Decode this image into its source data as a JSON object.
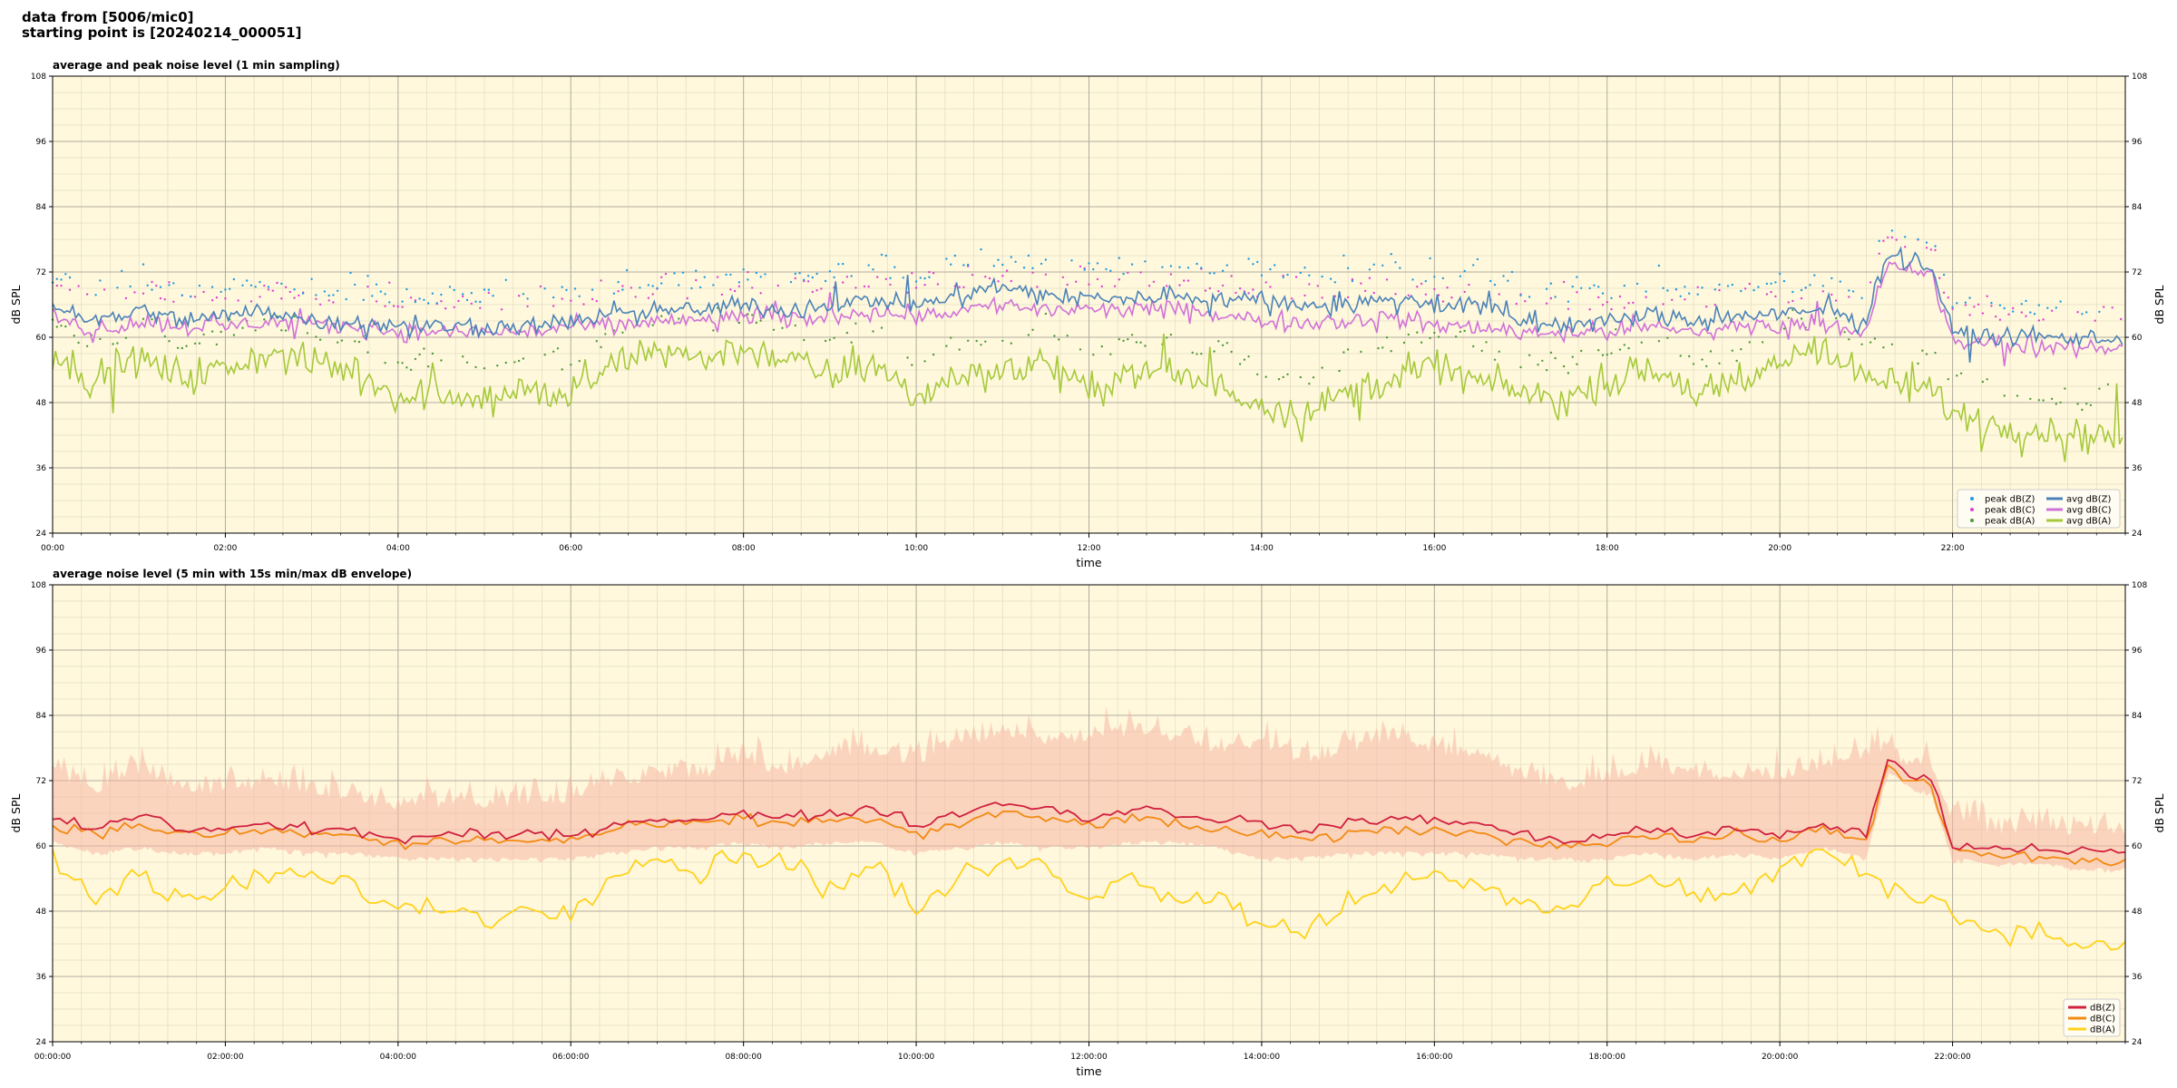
{
  "header": {
    "line1": "data from [5006/mic0]",
    "line2": "starting point is [20240214_000051]"
  },
  "chart_data": [
    {
      "type": "line",
      "title": "average and peak noise level (1 min sampling)",
      "xlabel": "time",
      "ylabel": "dB SPL",
      "ylabel_right": "dB SPL",
      "xlim_hours": [
        0,
        24
      ],
      "ylim": [
        24,
        108
      ],
      "yticks": [
        "24",
        "36",
        "48",
        "60",
        "72",
        "84",
        "96",
        "108"
      ],
      "xtick_hours": [
        0,
        2,
        4,
        6,
        8,
        10,
        12,
        14,
        16,
        18,
        20,
        22
      ],
      "xtick_labels": [
        "00:00",
        "02:00",
        "04:00",
        "06:00",
        "08:00",
        "10:00",
        "12:00",
        "14:00",
        "16:00",
        "18:00",
        "20:00",
        "22:00"
      ],
      "grid": true,
      "legend_position": "lower-right",
      "legend_columns": 2,
      "series": [
        {
          "name": "peak dB(Z)",
          "kind": "scatter",
          "color": "#1f9be0"
        },
        {
          "name": "peak dB(C)",
          "kind": "scatter",
          "color": "#e040d0"
        },
        {
          "name": "peak dB(A)",
          "kind": "scatter",
          "color": "#4e9a3c"
        },
        {
          "name": "avg dB(Z)",
          "kind": "line",
          "color": "#4a82b8"
        },
        {
          "name": "avg dB(C)",
          "kind": "line",
          "color": "#d070d8"
        },
        {
          "name": "avg dB(A)",
          "kind": "line",
          "color": "#a5c93a"
        }
      ],
      "x_hours": [
        0,
        0.5,
        1,
        1.5,
        2,
        2.5,
        3,
        3.5,
        4,
        4.5,
        5,
        5.5,
        6,
        6.5,
        7,
        7.5,
        8,
        8.5,
        9,
        9.5,
        10,
        10.5,
        11,
        11.5,
        12,
        12.5,
        13,
        13.5,
        14,
        14.5,
        15,
        15.5,
        16,
        16.5,
        17,
        17.5,
        18,
        18.5,
        19,
        19.5,
        20,
        20.5,
        21,
        21.25,
        21.5,
        21.75,
        22,
        22.5,
        23,
        23.5,
        24
      ],
      "avg_z": [
        66,
        63,
        65,
        63,
        64,
        65,
        63,
        63,
        62,
        62,
        62,
        62,
        63,
        64,
        65,
        65,
        66,
        65,
        66,
        67,
        66,
        68,
        69,
        68,
        67,
        67,
        68,
        67,
        67,
        66,
        66,
        67,
        66,
        66,
        63,
        62,
        63,
        64,
        63,
        64,
        64,
        65,
        63,
        76,
        74,
        73,
        61,
        60,
        60,
        60,
        60
      ],
      "avg_c": [
        64,
        61,
        63,
        62,
        62,
        63,
        62,
        62,
        61,
        61,
        61,
        61,
        62,
        62,
        63,
        63,
        64,
        63,
        64,
        65,
        64,
        65,
        66,
        65,
        65,
        65,
        65,
        64,
        63,
        63,
        63,
        64,
        62,
        62,
        61,
        61,
        61,
        62,
        61,
        62,
        62,
        63,
        61,
        73,
        72,
        72,
        59,
        59,
        58,
        58,
        58
      ],
      "avg_a": [
        57,
        52,
        56,
        53,
        54,
        57,
        55,
        54,
        49,
        50,
        49,
        50,
        49,
        55,
        58,
        56,
        58,
        56,
        53,
        55,
        49,
        53,
        54,
        55,
        50,
        54,
        53,
        51,
        48,
        46,
        50,
        52,
        55,
        52,
        50,
        48,
        52,
        54,
        50,
        50,
        56,
        58,
        52,
        52,
        50,
        51,
        46,
        44,
        43,
        42,
        42
      ]
    },
    {
      "type": "line",
      "title": "average noise level (5 min with 15s min/max dB envelope)",
      "xlabel": "time",
      "ylabel": "dB SPL",
      "ylabel_right": "dB SPL",
      "xlim_hours": [
        0,
        24
      ],
      "ylim": [
        24,
        108
      ],
      "yticks": [
        "24",
        "36",
        "48",
        "60",
        "72",
        "84",
        "96",
        "108"
      ],
      "xtick_hours": [
        0,
        2,
        4,
        6,
        8,
        10,
        12,
        14,
        16,
        18,
        20,
        22
      ],
      "xtick_labels": [
        "00:00:00",
        "02:00:00",
        "04:00:00",
        "06:00:00",
        "08:00:00",
        "10:00:00",
        "12:00:00",
        "14:00:00",
        "16:00:00",
        "18:00:00",
        "20:00:00",
        "22:00:00"
      ],
      "grid": true,
      "legend_position": "lower-right",
      "legend_columns": 1,
      "series": [
        {
          "name": "dB(Z)",
          "kind": "line",
          "color": "#d0203e"
        },
        {
          "name": "dB(C)",
          "kind": "line",
          "color": "#f28a12"
        },
        {
          "name": "dB(A)",
          "kind": "line",
          "color": "#ffd21a"
        }
      ],
      "x_hours": [
        0,
        0.5,
        1,
        1.5,
        2,
        2.5,
        3,
        3.5,
        4,
        4.5,
        5,
        5.5,
        6,
        6.5,
        7,
        7.5,
        8,
        8.5,
        9,
        9.5,
        10,
        10.5,
        11,
        11.5,
        12,
        12.5,
        13,
        13.5,
        14,
        14.5,
        15,
        15.5,
        16,
        16.5,
        17,
        17.5,
        18,
        18.5,
        19,
        19.5,
        20,
        20.5,
        21,
        21.25,
        21.5,
        21.75,
        22,
        22.5,
        23,
        23.5,
        24
      ],
      "z": [
        65,
        63,
        66,
        63,
        63,
        64,
        63,
        63,
        61,
        62,
        62,
        62,
        62,
        64,
        65,
        65,
        66,
        65,
        66,
        67,
        64,
        66,
        68,
        67,
        65,
        67,
        66,
        65,
        64,
        63,
        64,
        65,
        65,
        64,
        62,
        61,
        62,
        63,
        62,
        63,
        62,
        64,
        62,
        76,
        73,
        72,
        60,
        60,
        59,
        59,
        59
      ],
      "c": [
        64,
        62,
        64,
        62,
        62,
        63,
        62,
        62,
        60,
        61,
        61,
        61,
        61,
        63,
        64,
        64,
        65,
        64,
        65,
        65,
        62,
        64,
        66,
        65,
        64,
        65,
        64,
        63,
        62,
        61,
        62,
        63,
        63,
        62,
        61,
        60,
        61,
        62,
        61,
        62,
        61,
        63,
        61,
        75,
        72,
        71,
        59,
        58,
        58,
        57,
        57
      ],
      "a": [
        57,
        50,
        55,
        49,
        52,
        55,
        54,
        53,
        48,
        49,
        47,
        48,
        48,
        56,
        58,
        55,
        59,
        57,
        52,
        57,
        48,
        54,
        57,
        56,
        51,
        54,
        51,
        51,
        46,
        44,
        50,
        53,
        56,
        52,
        49,
        48,
        53,
        55,
        51,
        51,
        56,
        59,
        54,
        53,
        51,
        51,
        47,
        45,
        44,
        42,
        42
      ],
      "envelope_max": [
        73,
        69,
        73,
        70,
        69,
        71,
        69,
        68,
        66,
        67,
        67,
        67,
        68,
        71,
        72,
        72,
        74,
        73,
        76,
        76,
        74,
        78,
        80,
        78,
        79,
        80,
        79,
        77,
        78,
        75,
        77,
        79,
        77,
        75,
        72,
        70,
        71,
        74,
        72,
        72,
        72,
        74,
        76,
        77,
        74,
        74,
        64,
        62,
        62,
        62,
        62
      ],
      "envelope_min": [
        61,
        59,
        60,
        59,
        59,
        60,
        59,
        59,
        58,
        58,
        58,
        58,
        58,
        59,
        60,
        60,
        61,
        60,
        61,
        61,
        59,
        60,
        61,
        60,
        60,
        61,
        61,
        60,
        58,
        58,
        59,
        59,
        59,
        59,
        58,
        58,
        58,
        59,
        58,
        59,
        58,
        60,
        58,
        74,
        71,
        70,
        58,
        57,
        57,
        56,
        56
      ]
    }
  ]
}
